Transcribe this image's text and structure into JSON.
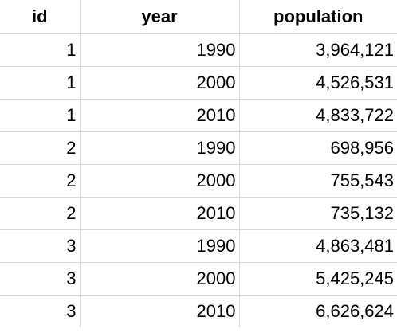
{
  "table": {
    "headers": [
      "id",
      "year",
      "population"
    ],
    "rows": [
      [
        "1",
        "1990",
        "3,964,121"
      ],
      [
        "1",
        "2000",
        "4,526,531"
      ],
      [
        "1",
        "2010",
        "4,833,722"
      ],
      [
        "2",
        "1990",
        "698,956"
      ],
      [
        "2",
        "2000",
        "755,543"
      ],
      [
        "2",
        "2010",
        "735,132"
      ],
      [
        "3",
        "1990",
        "4,863,481"
      ],
      [
        "3",
        "2000",
        "5,425,245"
      ],
      [
        "3",
        "2010",
        "6,626,624"
      ]
    ]
  }
}
